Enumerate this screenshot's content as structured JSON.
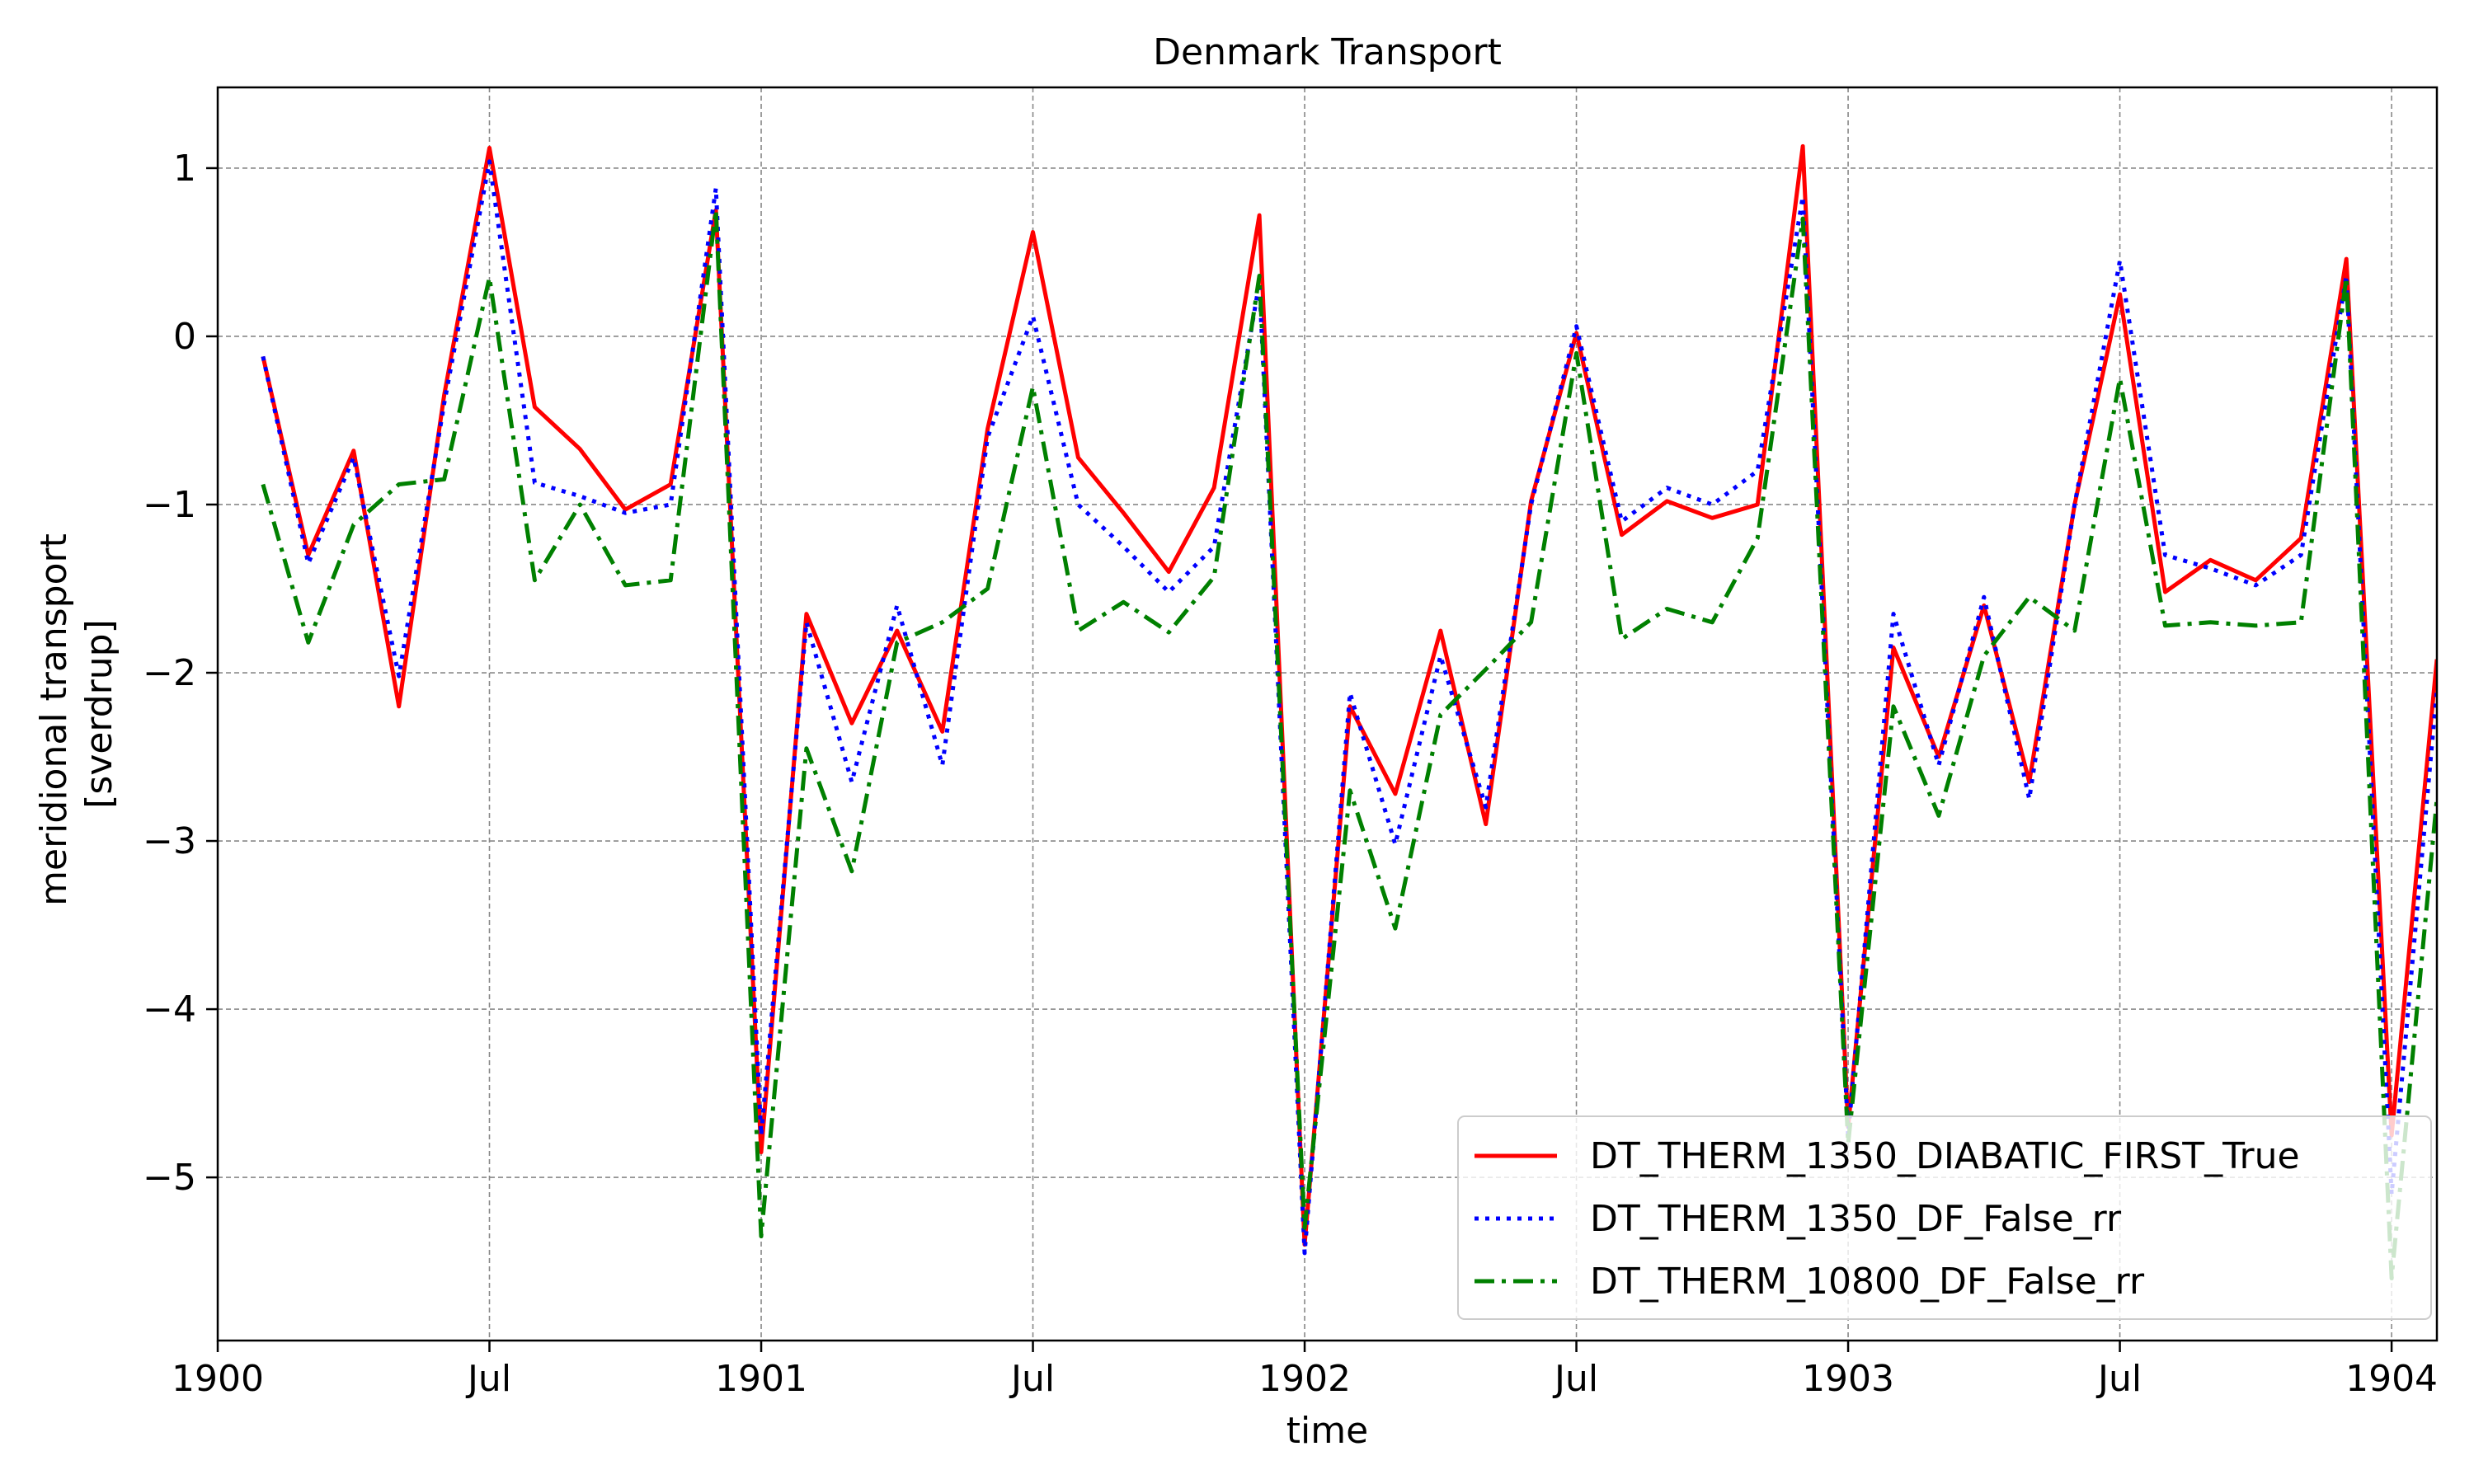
{
  "chart_data": {
    "type": "line",
    "title": "Denmark Transport",
    "xlabel": "time",
    "ylabel_lines": [
      "meridional transport",
      "[sverdrup]"
    ],
    "x_ticks": [
      {
        "t": 0,
        "label": "1900"
      },
      {
        "t": 6,
        "label": "Jul"
      },
      {
        "t": 12,
        "label": "1901"
      },
      {
        "t": 18,
        "label": "Jul"
      },
      {
        "t": 24,
        "label": "1902"
      },
      {
        "t": 30,
        "label": "Jul"
      },
      {
        "t": 36,
        "label": "1903"
      },
      {
        "t": 42,
        "label": "Jul"
      },
      {
        "t": 48,
        "label": "1904"
      }
    ],
    "y_ticks": [
      {
        "v": 1,
        "label": "1"
      },
      {
        "v": 0,
        "label": "0"
      },
      {
        "v": -1,
        "label": "−1"
      },
      {
        "v": -2,
        "label": "−2"
      },
      {
        "v": -3,
        "label": "−3"
      },
      {
        "v": -4,
        "label": "−4"
      },
      {
        "v": -5,
        "label": "−5"
      }
    ],
    "xlim": [
      0,
      49
    ],
    "ylim": [
      -5.97,
      1.48
    ],
    "grid": true,
    "legend_position": "lower right",
    "x": [
      1,
      2,
      3,
      4,
      5,
      6,
      7,
      8,
      9,
      10,
      11,
      12,
      13,
      14,
      15,
      16,
      17,
      18,
      19,
      20,
      21,
      22,
      23,
      24,
      25,
      26,
      27,
      28,
      29,
      30,
      31,
      32,
      33,
      34,
      35,
      36,
      37,
      38,
      39,
      40,
      41,
      42,
      43,
      44,
      45,
      46,
      47,
      48,
      49
    ],
    "series": [
      {
        "name": "DT_THERM_1350_DIABATIC_FIRST_True",
        "color": "#ff0000",
        "dash": "solid",
        "values": [
          -0.12,
          -1.3,
          -0.68,
          -2.2,
          -0.35,
          1.12,
          -0.42,
          -0.67,
          -1.03,
          -0.88,
          0.75,
          -4.85,
          -1.65,
          -2.3,
          -1.75,
          -2.35,
          -0.55,
          0.62,
          -0.72,
          -1.05,
          -1.4,
          -0.9,
          0.72,
          -5.4,
          -2.2,
          -2.72,
          -1.75,
          -2.9,
          -0.98,
          0.02,
          -1.18,
          -0.98,
          -1.08,
          -1.0,
          1.13,
          -4.7,
          -1.85,
          -2.5,
          -1.6,
          -2.65,
          -1.0,
          0.25,
          -1.52,
          -1.33,
          -1.45,
          -1.2,
          0.46,
          -4.75,
          -1.92
        ]
      },
      {
        "name": "DT_THERM_1350_DF_False_rr",
        "color": "#0000ff",
        "dash": "dotted",
        "values": [
          -0.12,
          -1.35,
          -0.72,
          -2.02,
          -0.4,
          1.04,
          -0.87,
          -0.95,
          -1.05,
          -1.0,
          0.88,
          -4.75,
          -1.7,
          -2.65,
          -1.6,
          -2.55,
          -0.6,
          0.12,
          -1.0,
          -1.25,
          -1.52,
          -1.25,
          0.32,
          -5.45,
          -2.12,
          -3.02,
          -1.9,
          -2.8,
          -1.0,
          0.06,
          -1.1,
          -0.9,
          -1.0,
          -0.8,
          0.83,
          -4.75,
          -1.65,
          -2.55,
          -1.55,
          -2.75,
          -1.0,
          0.45,
          -1.3,
          -1.38,
          -1.48,
          -1.3,
          0.36,
          -5.1,
          -2.1
        ]
      },
      {
        "name": "DT_THERM_10800_DF_False_rr",
        "color": "#008000",
        "dash": "dashdot",
        "values": [
          -0.88,
          -1.82,
          -1.12,
          -0.88,
          -0.85,
          0.35,
          -1.45,
          -1.0,
          -1.48,
          -1.45,
          0.75,
          -5.35,
          -2.45,
          -3.18,
          -1.82,
          -1.7,
          -1.5,
          -0.3,
          -1.75,
          -1.58,
          -1.76,
          -1.43,
          0.36,
          -5.3,
          -2.7,
          -3.52,
          -2.25,
          -1.98,
          -1.7,
          -0.1,
          -1.8,
          -1.62,
          -1.7,
          -1.2,
          0.7,
          -4.8,
          -2.2,
          -2.85,
          -1.9,
          -1.55,
          -1.75,
          -0.25,
          -1.72,
          -1.7,
          -1.72,
          -1.7,
          0.35,
          -5.6,
          -2.75
        ]
      }
    ]
  }
}
